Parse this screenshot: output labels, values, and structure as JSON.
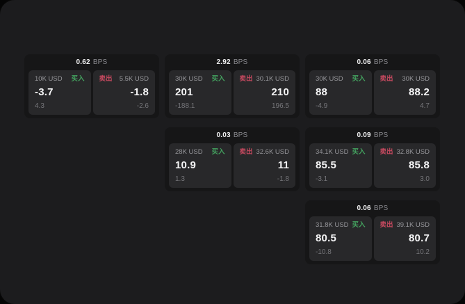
{
  "labels": {
    "bps_unit": "BPS",
    "buy": "买入",
    "sell": "卖出"
  },
  "colors": {
    "window_bg": "#1c1c1e",
    "card_bg": "#161617",
    "panel_bg": "#28282a",
    "buy_green": "#43a05e",
    "sell_red": "#c5495f"
  },
  "cards": [
    {
      "bps": "0.62",
      "buy": {
        "size": "10K USD",
        "price": "-3.7",
        "change": "4.3"
      },
      "sell": {
        "size": "5.5K USD",
        "price": "-1.8",
        "change": "-2.6"
      }
    },
    {
      "bps": "2.92",
      "buy": {
        "size": "30K USD",
        "price": "201",
        "change": "-188.1"
      },
      "sell": {
        "size": "30.1K USD",
        "price": "210",
        "change": "196.5"
      }
    },
    {
      "bps": "0.06",
      "buy": {
        "size": "30K USD",
        "price": "88",
        "change": "-4.9"
      },
      "sell": {
        "size": "30K USD",
        "price": "88.2",
        "change": "4.7"
      }
    },
    {
      "bps": "0.03",
      "buy": {
        "size": "28K USD",
        "price": "10.9",
        "change": "1.3"
      },
      "sell": {
        "size": "32.6K USD",
        "price": "11",
        "change": "-1.8"
      }
    },
    {
      "bps": "0.09",
      "buy": {
        "size": "34.1K USD",
        "price": "85.5",
        "change": "-3.1"
      },
      "sell": {
        "size": "32.8K USD",
        "price": "85.8",
        "change": "3.0"
      }
    },
    {
      "bps": "0.06",
      "buy": {
        "size": "31.8K USD",
        "price": "80.5",
        "change": "-10.8"
      },
      "sell": {
        "size": "39.1K USD",
        "price": "80.7",
        "change": "10.2"
      }
    }
  ]
}
